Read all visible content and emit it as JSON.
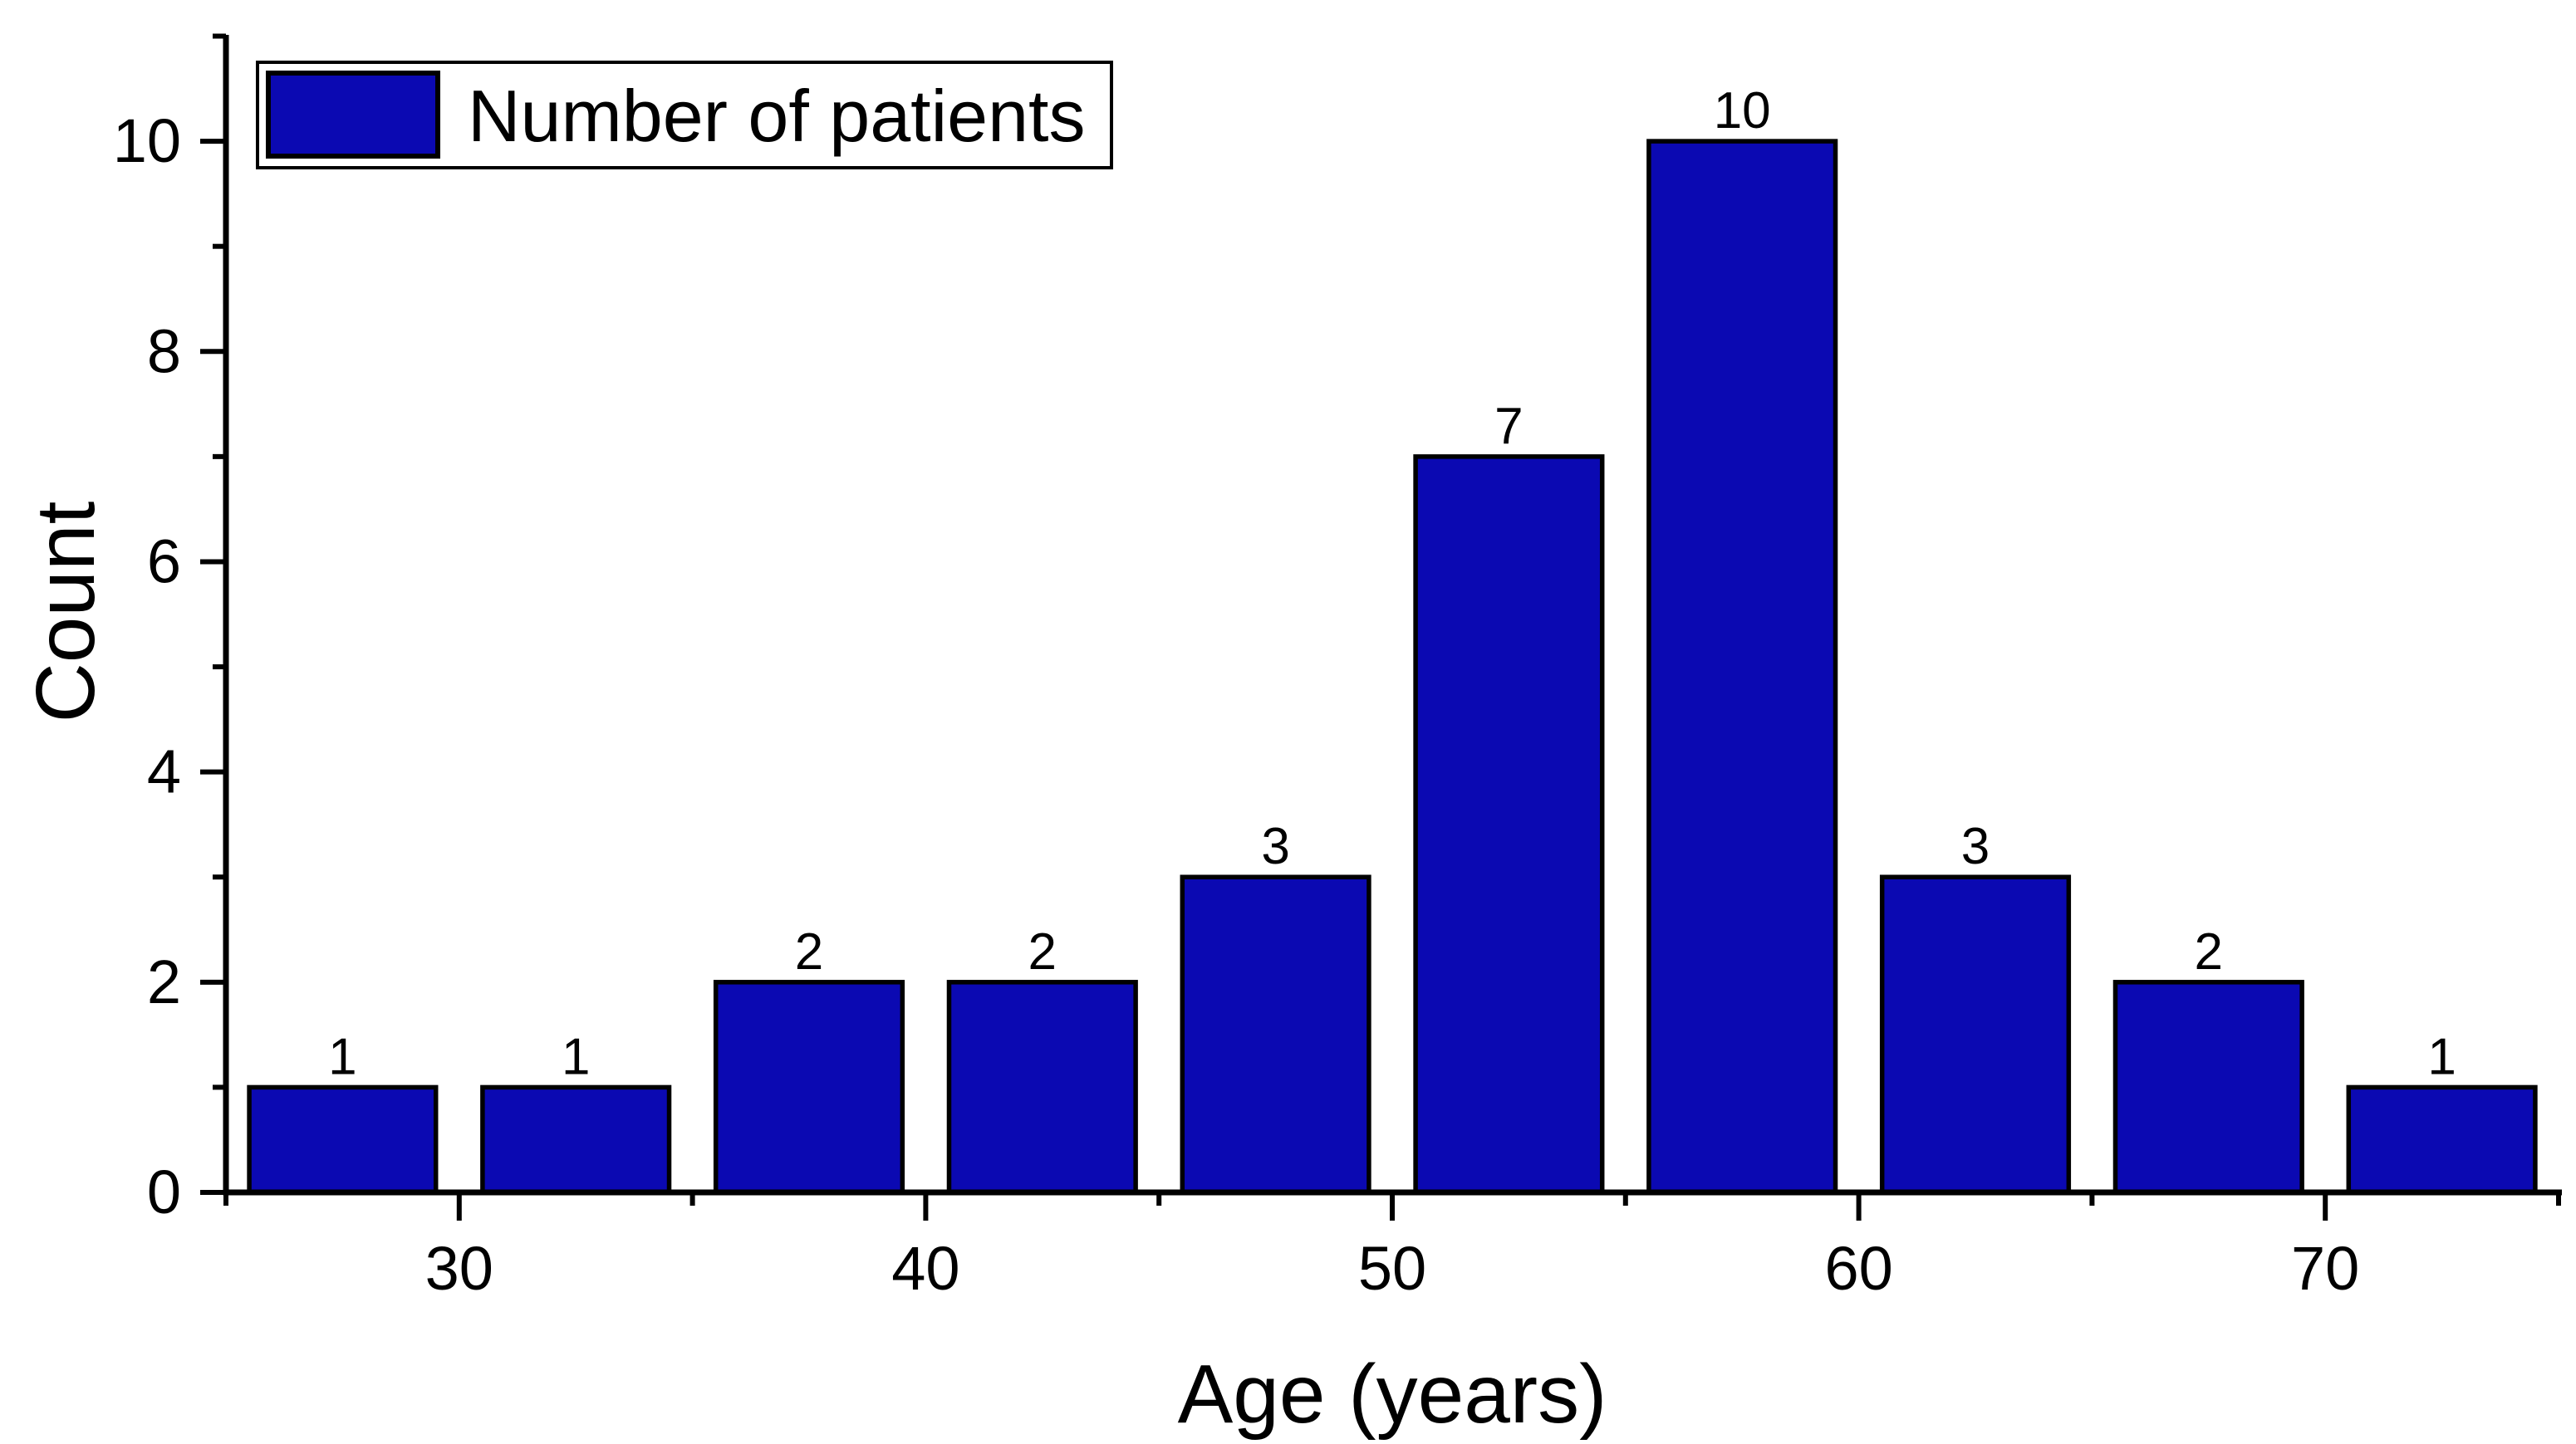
{
  "chart_data": {
    "type": "bar",
    "title": "",
    "xlabel": "Age (years)",
    "ylabel": "Count",
    "legend": [
      "Number of patients"
    ],
    "legend_position": "top-left",
    "grid": false,
    "xlim": [
      25,
      75
    ],
    "ylim": [
      0,
      11
    ],
    "bin_width": 5,
    "categories": [
      27.5,
      32.5,
      37.5,
      42.5,
      47.5,
      52.5,
      57.5,
      62.5,
      67.5,
      72.5
    ],
    "values": [
      1,
      1,
      2,
      2,
      3,
      7,
      10,
      3,
      2,
      1
    ],
    "bar_labels": [
      "1",
      "1",
      "2",
      "2",
      "3",
      "7",
      "10",
      "3",
      "2",
      "1"
    ],
    "x_major_ticks": [
      30,
      40,
      50,
      60,
      70
    ],
    "x_tick_labels": [
      "30",
      "40",
      "50",
      "60",
      "70"
    ],
    "x_minor_ticks": [
      25,
      35,
      45,
      55,
      65,
      75
    ],
    "y_major_ticks": [
      0,
      2,
      4,
      6,
      8,
      10
    ],
    "y_tick_labels": [
      "0",
      "2",
      "4",
      "6",
      "8",
      "10"
    ],
    "y_minor_ticks": [
      1,
      3,
      5,
      7,
      9,
      11
    ],
    "colors": {
      "bar_fill": "#0b09b2",
      "bar_stroke": "#000000",
      "axis": "#000000",
      "text": "#000000",
      "background": "#ffffff"
    }
  }
}
